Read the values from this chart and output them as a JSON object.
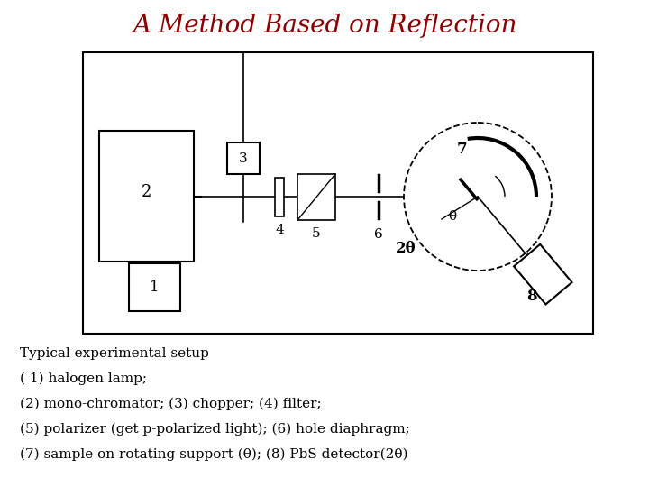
{
  "title": "A Method Based on Reflection",
  "title_color": "#8B0000",
  "title_fontsize": 20,
  "bg_color": "#ffffff",
  "caption_lines": [
    "Typical experimental setup",
    "( 1) halogen lamp;",
    "(2) mono-chromator; (3) chopper; (4) filter;",
    "(5) polarizer (get p-polarized light); (6) hole diaphragm;",
    "(7) sample on rotating support (θ); (8) PbS detector(2θ)"
  ],
  "caption_fontsize": 11
}
